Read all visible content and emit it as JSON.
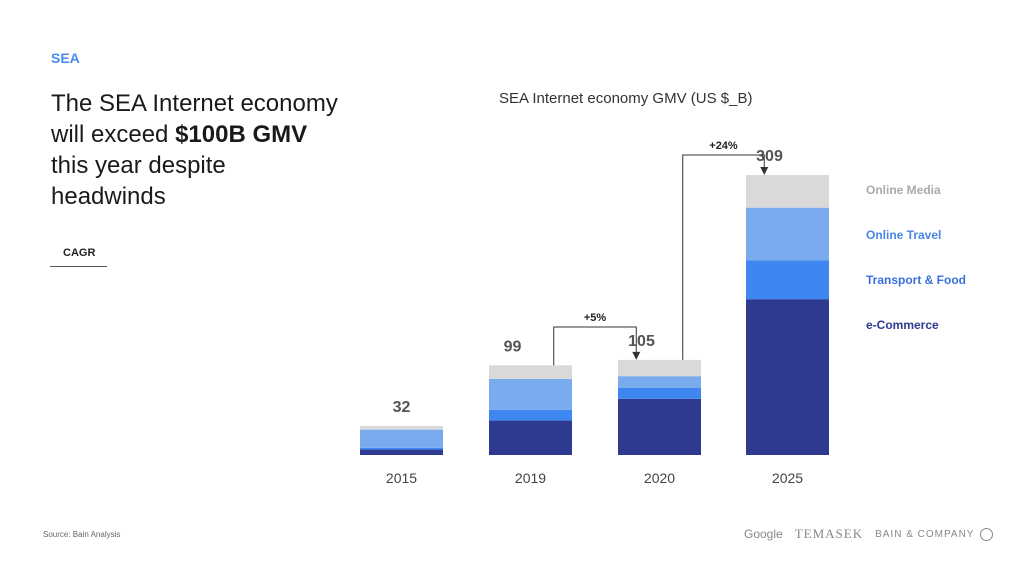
{
  "tag": "SEA",
  "headline": {
    "part1": "The SEA Internet economy will exceed ",
    "bold": "$100B GMV",
    "part2": " this year despite headwinds"
  },
  "cagr_label": "CAGR",
  "source": "Source: Bain Analysis",
  "logos": {
    "google": "Google",
    "temasek": "TEMASEK",
    "bain": "BAIN & COMPANY"
  },
  "chart_data": {
    "type": "bar",
    "stacked": true,
    "title": "SEA Internet economy GMV (US $_B)",
    "categories": [
      "2015",
      "2019",
      "2020",
      "2025"
    ],
    "totals": [
      32,
      99,
      105,
      309
    ],
    "series": [
      {
        "name": "e-Commerce",
        "color": "#2e3a8f",
        "values": [
          6,
          38,
          62,
          172
        ]
      },
      {
        "name": "Transport & Food",
        "color": "#3f87f0",
        "values": [
          2,
          12,
          12,
          43
        ]
      },
      {
        "name": "Online Travel",
        "color": "#7aabee",
        "values": [
          20,
          34,
          13,
          58
        ]
      },
      {
        "name": "Online Media",
        "color": "#d9d9d9",
        "values": [
          4,
          15,
          18,
          36
        ]
      }
    ],
    "legend_colors": [
      "#2e3a8f",
      "#3a70dc",
      "#4a86e8",
      "#aaaaaa"
    ],
    "annotations": [
      {
        "from": "2019",
        "to": "2020",
        "label": "+5%"
      },
      {
        "from": "2020",
        "to": "2025",
        "label": "+24%"
      }
    ],
    "legend_placement": "right",
    "grid": false
  }
}
